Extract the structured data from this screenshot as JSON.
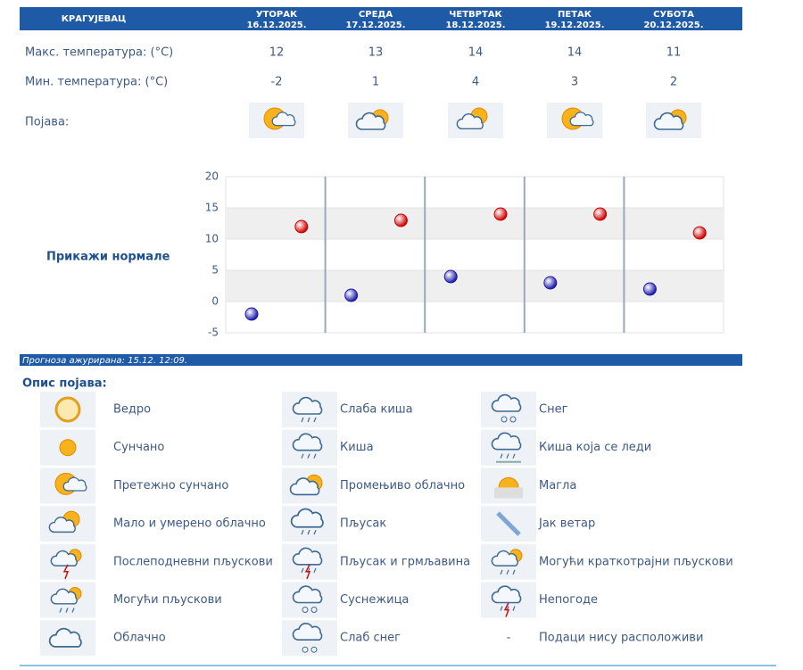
{
  "forecast": {
    "city": "КРАГУЈЕВАЦ",
    "days": [
      {
        "name": "УТОРАК",
        "date": "16.12.2025."
      },
      {
        "name": "СРЕДА",
        "date": "17.12.2025."
      },
      {
        "name": "ЧЕТВРТАК",
        "date": "18.12.2025."
      },
      {
        "name": "ПЕТАК",
        "date": "19.12.2025."
      },
      {
        "name": "СУБОТА",
        "date": "20.12.2025."
      }
    ],
    "phenomenon_label": "Појава:",
    "normals_link": "Прикажи нормале",
    "updated": "Прогноза ажурирана:  15.12. 12:09."
  },
  "chart_data": {
    "type": "scatter",
    "series": [
      {
        "name": "Макс. температура: (°C)",
        "color": "#cc0000",
        "values": [
          12,
          13,
          14,
          14,
          11
        ]
      },
      {
        "name": "Мин. температура: (°C)",
        "color": "#1a1aa8",
        "values": [
          -2,
          1,
          4,
          3,
          2
        ]
      }
    ],
    "ylim": [
      -5,
      20
    ],
    "yticks": [
      -5,
      0,
      5,
      10,
      15,
      20
    ]
  },
  "legend": {
    "title": "Опис појава:",
    "items": [
      "Ведро",
      "Сунчано",
      "Претежно сунчано",
      "Мало и умерено облачно",
      "Послеподневни пљускови",
      "Могући пљускови",
      "Облачно",
      "Слаба киша",
      "Киша",
      "Промењиво облачно",
      "Пљусак",
      "Пљусак и грмљавина",
      "Суснежица",
      "Слаб снег",
      "Снег",
      "Киша која се леди",
      "Магла",
      "Јак ветар",
      "Могући краткотрајни пљускови",
      "Непогоде",
      "Подаци нису расположиви"
    ],
    "no_data_mark": "-"
  }
}
